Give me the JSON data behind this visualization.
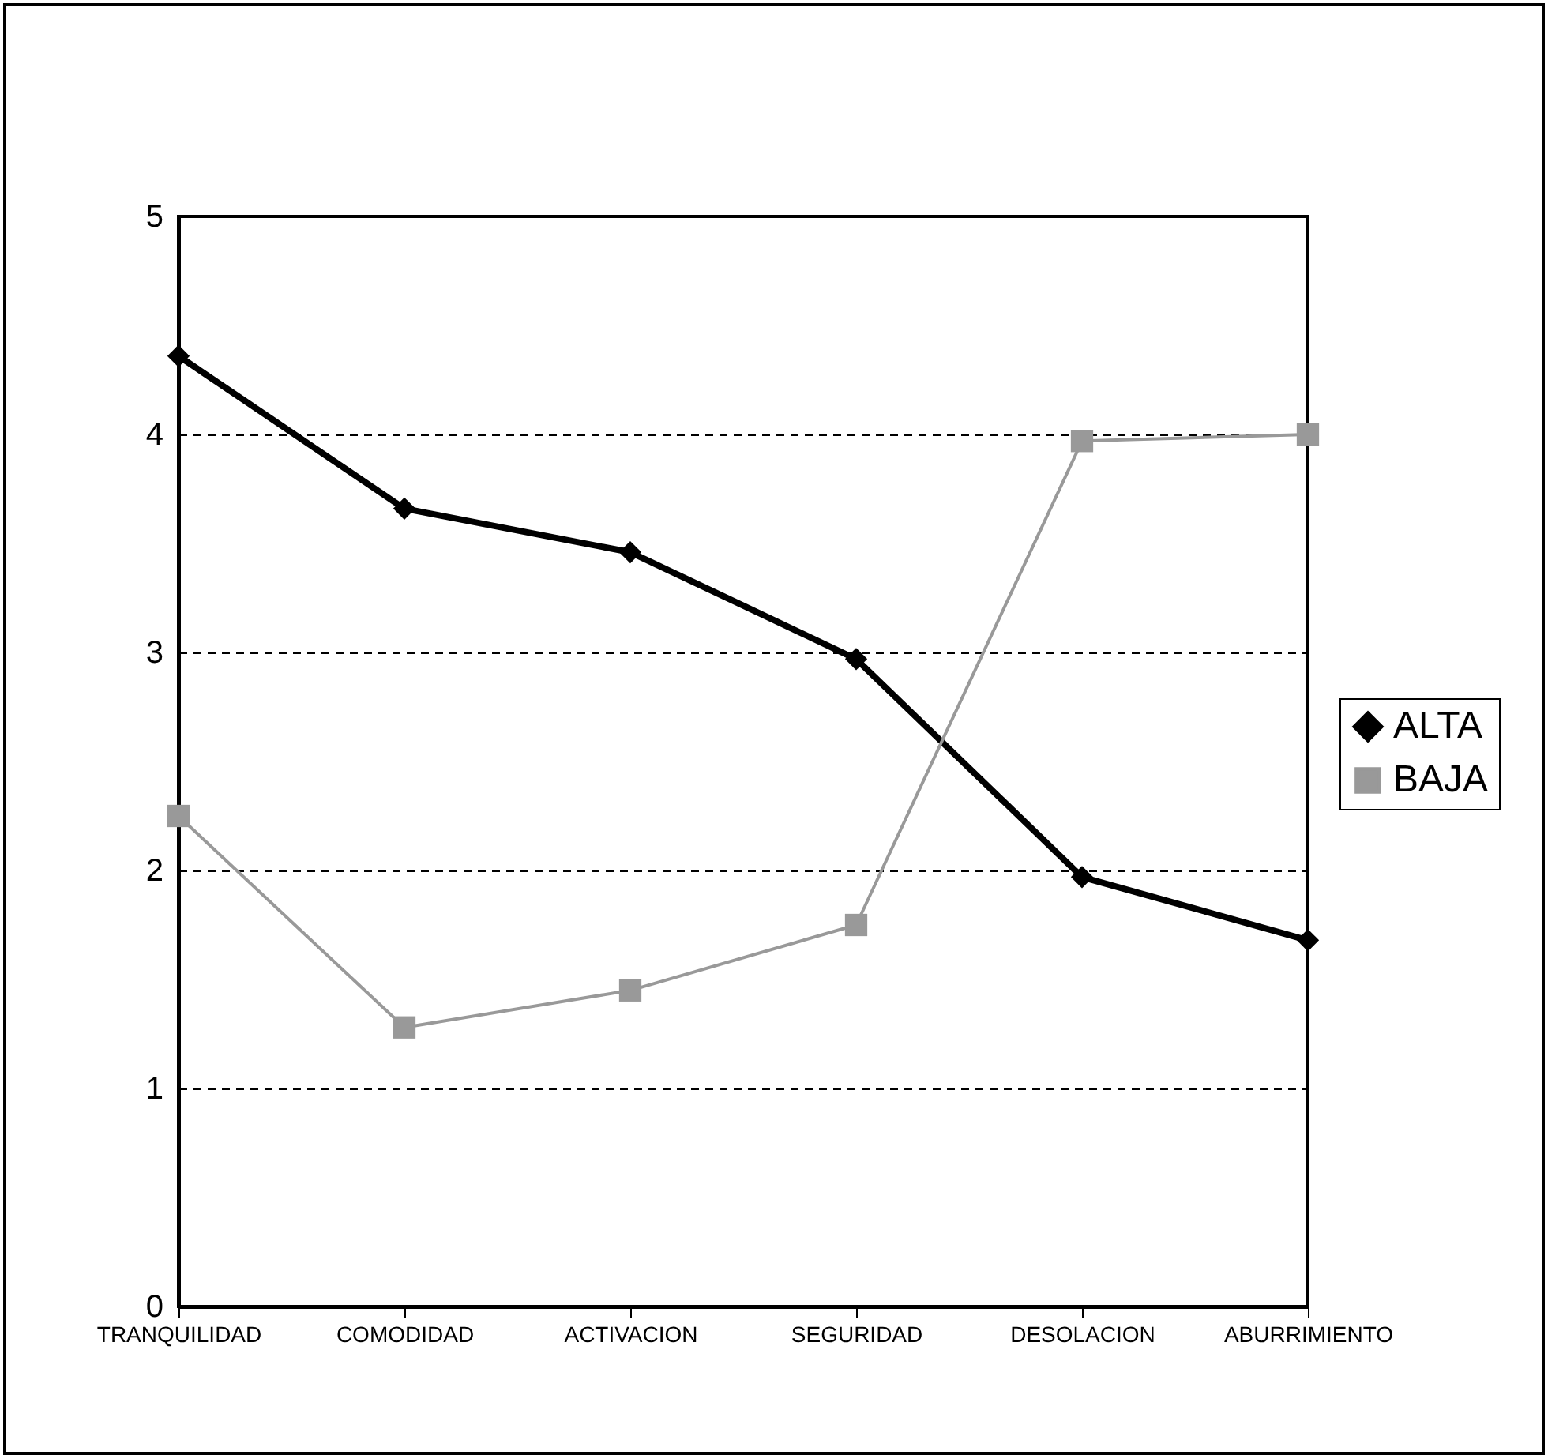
{
  "chart_data": {
    "type": "line",
    "categories": [
      "TRANQUILIDAD",
      "COMODIDAD",
      "ACTIVACION",
      "SEGURIDAD",
      "DESOLACION",
      "ABURRIMIENTO"
    ],
    "series": [
      {
        "name": "ALTA",
        "color": "#000000",
        "marker": "diamond",
        "values": [
          4.36,
          3.66,
          3.46,
          2.97,
          1.97,
          1.68
        ]
      },
      {
        "name": "BAJA",
        "color": "#999999",
        "marker": "square",
        "values": [
          2.25,
          1.28,
          1.45,
          1.75,
          3.97,
          4.0
        ]
      }
    ],
    "ylim": [
      0,
      5
    ],
    "yticks": [
      0,
      1,
      2,
      3,
      4,
      5
    ],
    "grid": "y",
    "legend": "right",
    "line_style": "solid"
  }
}
